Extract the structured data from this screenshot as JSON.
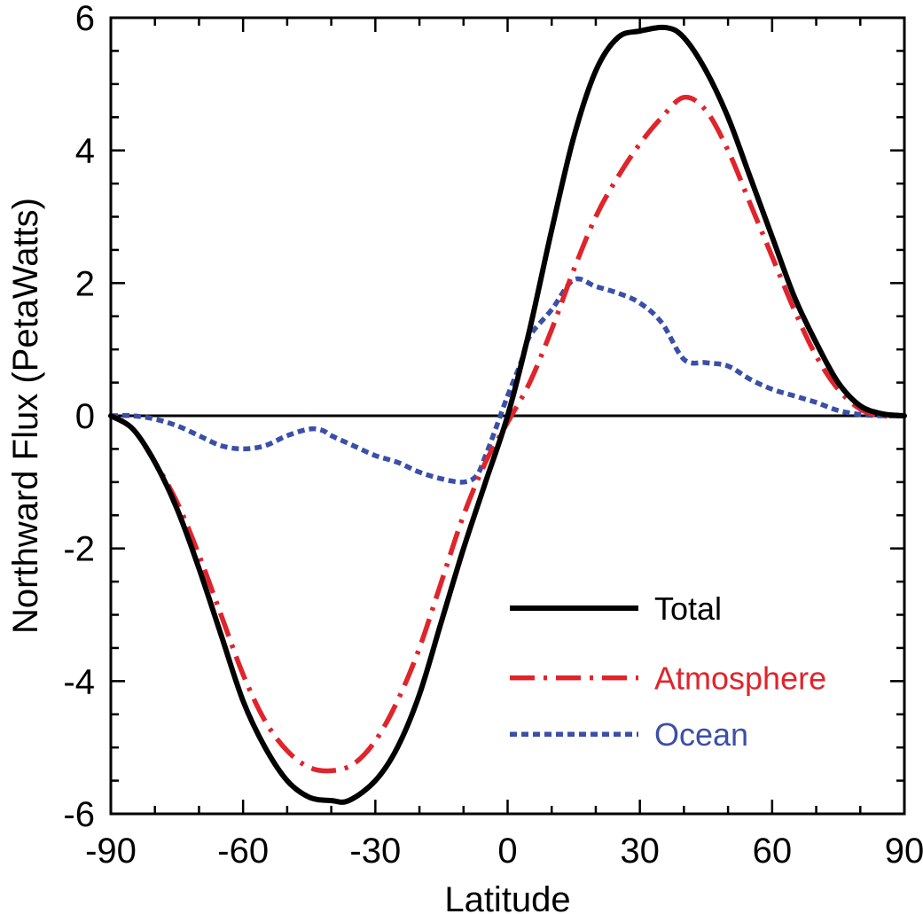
{
  "chart_data": {
    "type": "line",
    "title": "",
    "xlabel": "Latitude",
    "ylabel": "Northward Flux (PetaWatts)",
    "xlim": [
      -90,
      90
    ],
    "ylim": [
      -6,
      6
    ],
    "xticks": [
      -90,
      -60,
      -30,
      0,
      30,
      60,
      90
    ],
    "yticks": [
      -6,
      -4,
      -2,
      0,
      2,
      4,
      6
    ],
    "grid": false,
    "legend_position": "bottom-right",
    "zero_line": true,
    "series": [
      {
        "name": "Total",
        "color": "#000000",
        "style": "solid",
        "x": [
          -90,
          -85,
          -80,
          -75,
          -70,
          -65,
          -60,
          -55,
          -50,
          -45,
          -40,
          -36,
          -30,
          -25,
          -20,
          -15,
          -10,
          -5,
          0,
          5,
          10,
          15,
          20,
          25,
          30,
          36,
          40,
          45,
          50,
          55,
          60,
          65,
          70,
          75,
          80,
          85,
          90
        ],
        "values": [
          0.0,
          -0.2,
          -0.7,
          -1.4,
          -2.3,
          -3.3,
          -4.3,
          -5.0,
          -5.5,
          -5.75,
          -5.8,
          -5.8,
          -5.5,
          -5.0,
          -4.2,
          -3.1,
          -2.0,
          -1.0,
          0.0,
          1.3,
          2.8,
          4.2,
          5.2,
          5.7,
          5.8,
          5.85,
          5.7,
          5.2,
          4.5,
          3.6,
          2.7,
          1.8,
          1.1,
          0.5,
          0.15,
          0.03,
          0.0
        ]
      },
      {
        "name": "Atmosphere",
        "color": "#e0242b",
        "style": "dashdot",
        "x": [
          -90,
          -85,
          -80,
          -75,
          -70,
          -65,
          -60,
          -55,
          -50,
          -45,
          -40,
          -35,
          -30,
          -25,
          -20,
          -15,
          -10,
          -5,
          0,
          5,
          10,
          15,
          20,
          25,
          30,
          35,
          40,
          45,
          50,
          55,
          60,
          65,
          70,
          75,
          80,
          85,
          90
        ],
        "values": [
          0.0,
          -0.2,
          -0.7,
          -1.3,
          -2.1,
          -3.0,
          -3.9,
          -4.6,
          -5.05,
          -5.3,
          -5.35,
          -5.25,
          -4.9,
          -4.3,
          -3.5,
          -2.5,
          -1.5,
          -0.7,
          -0.1,
          0.5,
          1.3,
          2.2,
          3.0,
          3.6,
          4.1,
          4.5,
          4.8,
          4.6,
          4.0,
          3.2,
          2.4,
          1.6,
          0.9,
          0.4,
          0.1,
          0.0,
          0.0
        ]
      },
      {
        "name": "Ocean",
        "color": "#3a4fa8",
        "style": "dotted",
        "x": [
          -90,
          -85,
          -80,
          -75,
          -70,
          -65,
          -60,
          -55,
          -50,
          -45,
          -42,
          -40,
          -35,
          -30,
          -25,
          -20,
          -15,
          -10,
          -7,
          -5,
          -3,
          0,
          3,
          5,
          10,
          15,
          20,
          25,
          30,
          35,
          40,
          45,
          50,
          55,
          60,
          65,
          70,
          75,
          80,
          85,
          90
        ],
        "values": [
          0.0,
          0.0,
          -0.05,
          -0.15,
          -0.3,
          -0.45,
          -0.5,
          -0.45,
          -0.3,
          -0.2,
          -0.22,
          -0.3,
          -0.45,
          -0.6,
          -0.7,
          -0.85,
          -0.95,
          -1.0,
          -0.9,
          -0.6,
          -0.25,
          0.3,
          0.8,
          1.2,
          1.6,
          2.05,
          1.95,
          1.85,
          1.7,
          1.4,
          0.85,
          0.8,
          0.75,
          0.55,
          0.4,
          0.3,
          0.2,
          0.08,
          0.02,
          0.0,
          0.0
        ]
      }
    ]
  }
}
